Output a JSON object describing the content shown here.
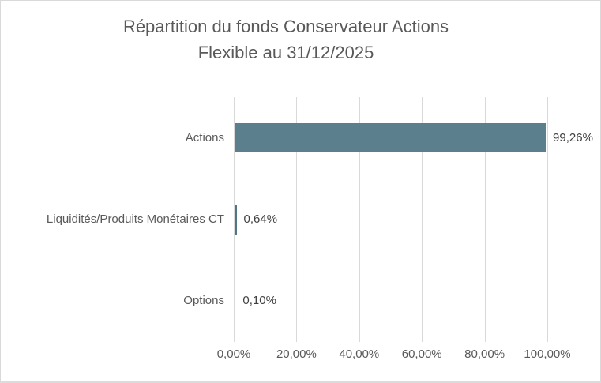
{
  "chart_data": {
    "type": "bar",
    "orientation": "horizontal",
    "title": "Répartition du fonds Conservateur Actions Flexible au 31/12/2025",
    "title_lines": [
      "Répartition du fonds Conservateur Actions",
      "Flexible au 31/12/2025"
    ],
    "categories": [
      "Actions",
      "Liquidités/Produits Monétaires CT",
      "Options"
    ],
    "values": [
      99.26,
      0.64,
      0.1
    ],
    "value_labels": [
      "99,26%",
      "0,64%",
      "0,10%"
    ],
    "bar_colors": [
      "#5c7f8d",
      "#507584",
      "#2f3e5f"
    ],
    "xlabel": "",
    "ylabel": "",
    "xlim": [
      0,
      100
    ],
    "x_ticks": [
      0,
      20,
      40,
      60,
      80,
      100
    ],
    "x_tick_labels": [
      "0,00%",
      "20,00%",
      "40,00%",
      "60,00%",
      "80,00%",
      "100,00%"
    ],
    "grid": "vertical",
    "legend": "none",
    "gridline_color": "#d9d9d9",
    "title_color": "#595959",
    "axis_label_color": "#595959",
    "data_label_color": "#404040",
    "background_color": "#ffffff",
    "border_color": "#d9d9d9"
  }
}
